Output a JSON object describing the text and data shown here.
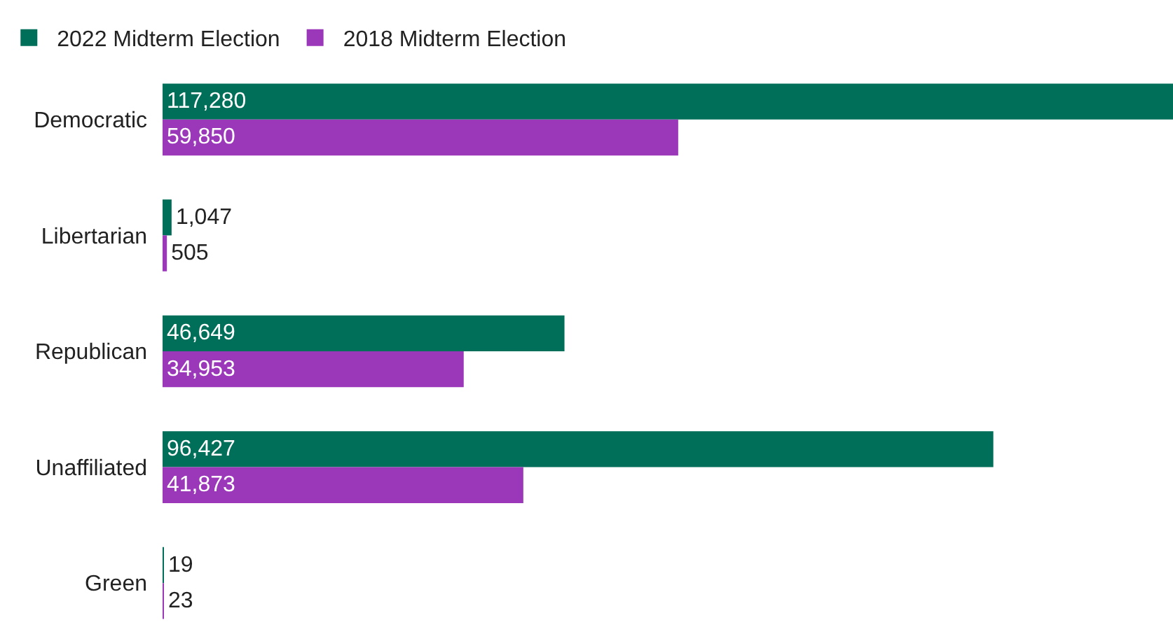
{
  "chart_data": {
    "type": "bar",
    "orientation": "horizontal",
    "categories": [
      "Democratic",
      "Libertarian",
      "Republican",
      "Unaffiliated",
      "Green"
    ],
    "series": [
      {
        "name": "2022 Midterm Election",
        "color": "#006f59",
        "values": [
          117280,
          1047,
          46649,
          96427,
          19
        ],
        "value_labels": [
          "117,280",
          "1,047",
          "46,649",
          "96,427",
          "19"
        ]
      },
      {
        "name": "2018 Midterm Election",
        "color": "#9b37b9",
        "values": [
          59850,
          505,
          34953,
          41873,
          23
        ],
        "value_labels": [
          "59,850",
          "505",
          "34,953",
          "41,873",
          "23"
        ]
      }
    ],
    "legend": "top left",
    "tick_labels": "y"
  }
}
